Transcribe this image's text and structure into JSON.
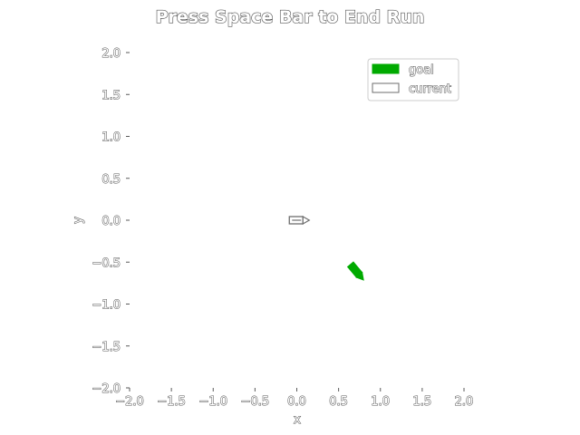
{
  "chart_data": {
    "type": "scatter",
    "title": "Press Space Bar to End Run",
    "xlabel": "x",
    "ylabel": "y",
    "xlim": [
      -2.0,
      2.0
    ],
    "ylim": [
      -2.0,
      2.0
    ],
    "x_ticks": [
      -2.0,
      -1.5,
      -1.0,
      -0.5,
      0.0,
      0.5,
      1.0,
      1.5,
      2.0
    ],
    "y_ticks": [
      -2.0,
      -1.5,
      -1.0,
      -0.5,
      0.0,
      0.5,
      1.0,
      1.5,
      2.0
    ],
    "x_tick_labels": [
      "−2.0",
      "−1.5",
      "−1.0",
      "−0.5",
      "0.0",
      "0.5",
      "1.0",
      "1.5",
      "2.0"
    ],
    "y_tick_labels": [
      "−2.0",
      "−1.5",
      "−1.0",
      "−0.5",
      "0.0",
      "0.5",
      "1.0",
      "1.5",
      "2.0"
    ],
    "grid": false,
    "legend_position": "upper-right",
    "series": [
      {
        "name": "goal",
        "color": "#00aa00",
        "fill": "#00aa00",
        "marker": "arrow-icon",
        "points": [
          {
            "x": 0.72,
            "y": -0.62,
            "heading_deg": -50
          }
        ]
      },
      {
        "name": "current",
        "color": "#6e6e6e",
        "fill": "#ffffff",
        "marker": "arrow-icon",
        "points": [
          {
            "x": 0.03,
            "y": 0.0,
            "heading_deg": 0
          }
        ]
      }
    ]
  }
}
